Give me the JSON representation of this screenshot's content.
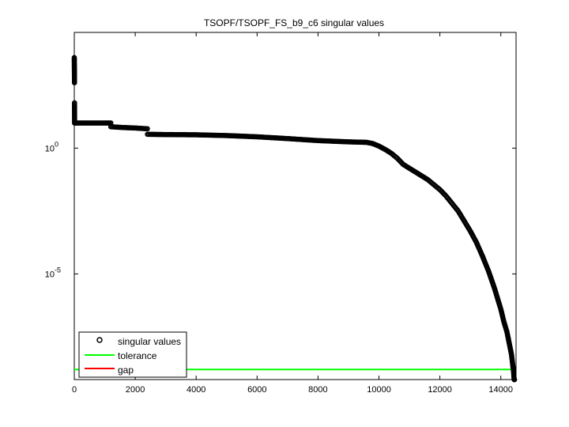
{
  "chart_data": {
    "type": "scatter",
    "title": "TSOPF/TSOPF_FS_b9_c6 singular values",
    "xlabel": "",
    "ylabel": "",
    "yscale": "log",
    "xlim": [
      0,
      14500
    ],
    "ylim_exp": [
      -9.2,
      4.6
    ],
    "grid": false,
    "legend_placement": "bottom-left",
    "x_ticks": [
      "0",
      "2000",
      "4000",
      "6000",
      "8000",
      "10000",
      "12000",
      "14000"
    ],
    "y_ticks": [
      {
        "base": "10",
        "exp": "0"
      },
      {
        "base": "10",
        "exp": "-5"
      }
    ],
    "series": [
      {
        "name": "singular values",
        "marker": "circle",
        "color": "#000000",
        "scale": "log10",
        "x": [
          0,
          1,
          2,
          3,
          4,
          5,
          6,
          7,
          8,
          10,
          12,
          20,
          100,
          500,
          1000,
          1199,
          1200,
          1600,
          2000,
          2400,
          2401,
          3000,
          4000,
          5000,
          6000,
          7000,
          8000,
          9000,
          9600,
          9800,
          10000,
          10200,
          10400,
          10600,
          10800,
          11000,
          11200,
          11400,
          11600,
          11800,
          12000,
          12200,
          12400,
          12600,
          12800,
          13000,
          13200,
          13400,
          13600,
          13800,
          14000,
          14100,
          14200,
          14250,
          14300,
          14350,
          14380,
          14400,
          14420,
          14430,
          14440,
          14445,
          14450
        ],
        "log10_values": [
          3.6,
          3.45,
          3.3,
          3.15,
          3.05,
          2.9,
          2.75,
          2.6,
          1.8,
          1.0,
          1.0,
          1.0,
          1.0,
          1.0,
          1.0,
          1.0,
          0.85,
          0.82,
          0.8,
          0.77,
          0.55,
          0.54,
          0.53,
          0.5,
          0.45,
          0.38,
          0.3,
          0.25,
          0.23,
          0.18,
          0.08,
          -0.05,
          -0.2,
          -0.4,
          -0.65,
          -0.8,
          -0.95,
          -1.1,
          -1.25,
          -1.45,
          -1.65,
          -1.9,
          -2.2,
          -2.5,
          -2.9,
          -3.3,
          -3.75,
          -4.3,
          -4.9,
          -5.6,
          -6.4,
          -6.9,
          -7.3,
          -7.6,
          -7.9,
          -8.2,
          -8.5,
          -8.7,
          -8.9,
          -9.1,
          -9.2,
          -9.2,
          -9.2
        ]
      },
      {
        "name": "tolerance",
        "line": true,
        "color": "#00ff00",
        "x": [
          0,
          14450
        ],
        "log10_values": [
          -8.8,
          -8.8
        ]
      },
      {
        "name": "gap",
        "line": true,
        "color": "#ff0000",
        "x": [],
        "log10_values": []
      }
    ]
  }
}
